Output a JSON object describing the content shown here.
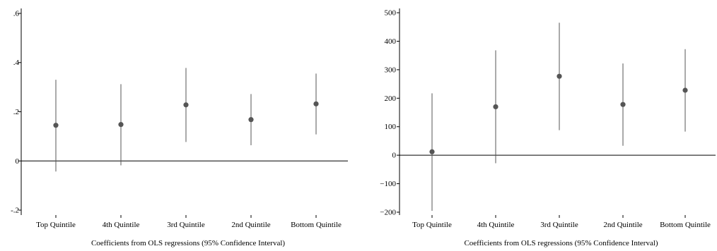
{
  "chart_data": [
    {
      "type": "scatter",
      "xlabel": "Coefficients from OLS regressions (95% Confidence Interval)",
      "ylabel": "",
      "categories": [
        "Top Quintile",
        "4th Quintile",
        "3rd Quintile",
        "2nd Quintile",
        "Bottom Quintile"
      ],
      "ylim": [
        -0.22,
        0.62
      ],
      "yticks": [
        -0.2,
        0,
        0.2,
        0.4,
        0.6
      ],
      "ytick_labels": [
        "-.2",
        "0",
        ".2",
        ".4",
        ".6"
      ],
      "reference_line": 0,
      "grid": false,
      "series": [
        {
          "estimate": [
            0.145,
            0.148,
            0.228,
            0.168,
            0.232
          ],
          "ci_low": [
            -0.043,
            -0.018,
            0.077,
            0.064,
            0.108
          ],
          "ci_high": [
            0.33,
            0.312,
            0.378,
            0.272,
            0.355
          ]
        }
      ]
    },
    {
      "type": "scatter",
      "xlabel": "Coefficients from OLS regressions (95% Confidence Interval)",
      "ylabel": "",
      "categories": [
        "Top Quintile",
        "4th Quintile",
        "3rd Quintile",
        "2nd Quintile",
        "Bottom Quintile"
      ],
      "ylim": [
        -210,
        515
      ],
      "yticks": [
        -200,
        -100,
        0,
        100,
        200,
        300,
        400,
        500
      ],
      "ytick_labels": [
        "−200",
        "−100",
        "0",
        "100",
        "200",
        "300",
        "400",
        "500"
      ],
      "reference_line": 0,
      "grid": false,
      "series": [
        {
          "estimate": [
            12,
            170,
            277,
            178,
            228
          ],
          "ci_low": [
            -195,
            -28,
            88,
            33,
            83
          ],
          "ci_high": [
            217,
            368,
            465,
            322,
            372
          ]
        }
      ]
    }
  ]
}
